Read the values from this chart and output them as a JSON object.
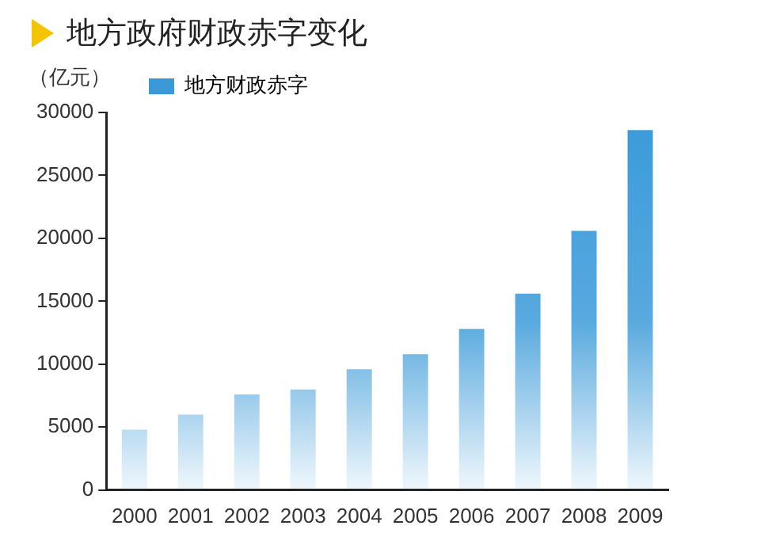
{
  "chart_data": {
    "type": "bar",
    "title": "地方政府财政赤字变化",
    "ylabel": "（亿元）",
    "categories": [
      "2000",
      "2001",
      "2002",
      "2003",
      "2004",
      "2005",
      "2006",
      "2007",
      "2008",
      "2009"
    ],
    "series": [
      {
        "name": "地方财政赤字",
        "color": "#3a9ad9",
        "values": [
          4800,
          6000,
          7600,
          8000,
          9600,
          10800,
          12800,
          15600,
          20600,
          28600
        ]
      }
    ],
    "ylim": [
      0,
      30000
    ],
    "yticks": [
      0,
      5000,
      10000,
      15000,
      20000,
      25000,
      30000
    ],
    "grid": false,
    "legend": "top left"
  }
}
